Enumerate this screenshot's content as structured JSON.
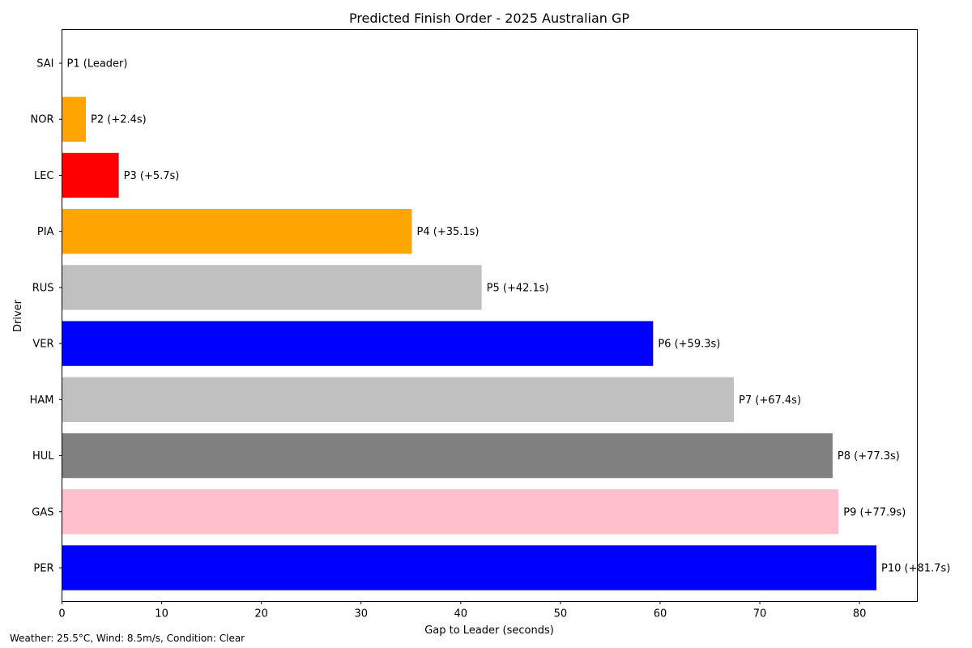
{
  "chart_data": {
    "type": "bar",
    "orientation": "horizontal",
    "title": "Predicted Finish Order - 2025 Australian GP",
    "xlabel": "Gap to Leader (seconds)",
    "ylabel": "Driver",
    "xlim": [
      0,
      85.8
    ],
    "xticks": [
      0,
      10,
      20,
      30,
      40,
      50,
      60,
      70,
      80
    ],
    "grid": false,
    "categories": [
      "SAI",
      "NOR",
      "LEC",
      "PIA",
      "RUS",
      "VER",
      "HAM",
      "HUL",
      "GAS",
      "PER"
    ],
    "values": [
      0,
      2.4,
      5.7,
      35.1,
      42.1,
      59.3,
      67.4,
      77.3,
      77.9,
      81.7
    ],
    "labels": [
      "P1 (Leader)",
      "P2 (+2.4s)",
      "P3 (+5.7s)",
      "P4 (+35.1s)",
      "P5 (+42.1s)",
      "P6 (+59.3s)",
      "P7 (+67.4s)",
      "P8 (+77.3s)",
      "P9 (+77.9s)",
      "P10 (+81.7s)"
    ],
    "colors": [
      "#ff0000",
      "#ffa500",
      "#ff0000",
      "#ffa500",
      "#c0c0c0",
      "#0000ff",
      "#c0c0c0",
      "#808080",
      "#ffc0cb",
      "#0000ff"
    ]
  },
  "footer": "Weather: 25.5°C, Wind: 8.5m/s, Condition: Clear"
}
